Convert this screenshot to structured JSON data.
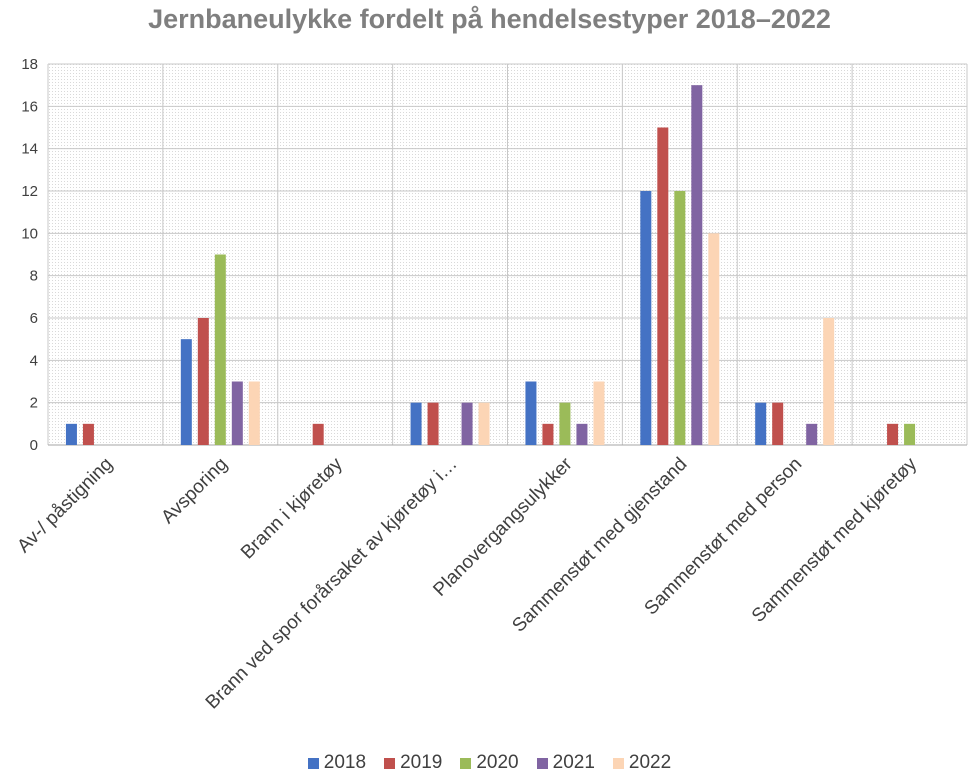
{
  "chart_data": {
    "type": "bar",
    "title": "Jernbaneulykke fordelt på hendelsestyper 2018–2022",
    "categories": [
      "Av-/ påstigning",
      "Avsporing",
      "Brann i kjøretøy",
      "Brann ved spor forårsaket av kjøretøy i…",
      "Planovergangsulykker",
      "Sammenstøt med gjenstand",
      "Sammenstøt med person",
      "Sammenstøt med kjøretøy"
    ],
    "series": [
      {
        "name": "2018",
        "color": "#4472c4",
        "values": [
          1,
          5,
          0,
          2,
          3,
          12,
          2,
          0
        ]
      },
      {
        "name": "2019",
        "color": "#c0504d",
        "values": [
          1,
          6,
          1,
          2,
          1,
          15,
          2,
          1
        ]
      },
      {
        "name": "2020",
        "color": "#9bbb59",
        "values": [
          0,
          9,
          0,
          0,
          2,
          12,
          0,
          1
        ]
      },
      {
        "name": "2021",
        "color": "#8064a2",
        "values": [
          0,
          3,
          0,
          2,
          1,
          17,
          1,
          0
        ]
      },
      {
        "name": "2022",
        "color": "#fcd5b5",
        "values": [
          0,
          3,
          0,
          2,
          3,
          10,
          6,
          0
        ]
      }
    ],
    "yticks": [
      "0",
      "2",
      "4",
      "6",
      "8",
      "10",
      "12",
      "14",
      "16",
      "18"
    ],
    "ylim": [
      0,
      18
    ],
    "grid": true,
    "legend": "bottom"
  }
}
